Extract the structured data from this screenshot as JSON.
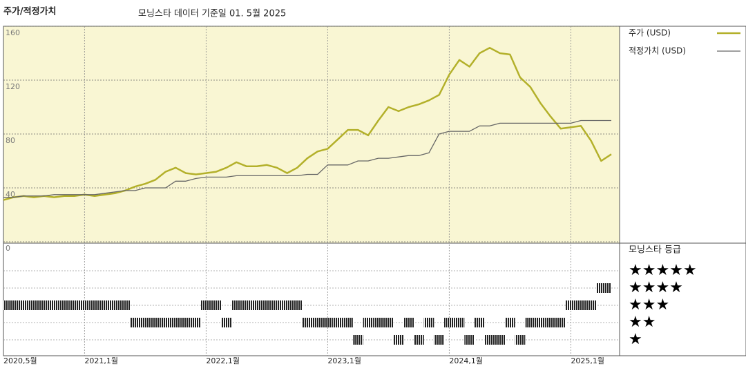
{
  "chart_data": {
    "type": "line",
    "title": "주가/적정가치",
    "subtitle": "모닝스타 데이터 기준일 01. 5월 2025",
    "x": [
      "2020-05",
      "2020-06",
      "2020-07",
      "2020-08",
      "2020-09",
      "2020-10",
      "2020-11",
      "2020-12",
      "2021-01",
      "2021-02",
      "2021-03",
      "2021-04",
      "2021-05",
      "2021-06",
      "2021-07",
      "2021-08",
      "2021-09",
      "2021-10",
      "2021-11",
      "2021-12",
      "2022-01",
      "2022-02",
      "2022-03",
      "2022-04",
      "2022-05",
      "2022-06",
      "2022-07",
      "2022-08",
      "2022-09",
      "2022-10",
      "2022-11",
      "2022-12",
      "2023-01",
      "2023-02",
      "2023-03",
      "2023-04",
      "2023-05",
      "2023-06",
      "2023-07",
      "2023-08",
      "2023-09",
      "2023-10",
      "2023-11",
      "2023-12",
      "2024-01",
      "2024-02",
      "2024-03",
      "2024-04",
      "2024-05",
      "2024-06",
      "2024-07",
      "2024-08",
      "2024-09",
      "2024-10",
      "2024-11",
      "2024-12",
      "2025-01",
      "2025-02",
      "2025-03",
      "2025-04",
      "2025-05"
    ],
    "series": [
      {
        "name": "주가 (USD)",
        "color": "#b3b02a",
        "width": 2.5,
        "values": [
          31,
          33,
          34,
          33,
          34,
          33,
          34,
          34,
          35,
          34,
          35,
          36,
          38,
          41,
          43,
          46,
          52,
          55,
          51,
          50,
          51,
          52,
          55,
          59,
          56,
          56,
          57,
          55,
          51,
          55,
          62,
          67,
          69,
          76,
          83,
          83,
          79,
          90,
          100,
          97,
          100,
          102,
          105,
          109,
          124,
          135,
          130,
          140,
          144,
          140,
          139,
          122,
          115,
          103,
          93,
          84,
          85,
          86,
          75,
          60,
          65
        ]
      },
      {
        "name": "적정가치 (USD)",
        "color": "#666666",
        "width": 1.3,
        "values": [
          33,
          33,
          34,
          34,
          34,
          35,
          35,
          35,
          35,
          35,
          36,
          37,
          38,
          38,
          40,
          40,
          40,
          45,
          45,
          47,
          48,
          48,
          48,
          49,
          49,
          49,
          49,
          49,
          49,
          49,
          50,
          50,
          57,
          57,
          57,
          60,
          60,
          62,
          62,
          63,
          64,
          64,
          66,
          80,
          82,
          82,
          82,
          86,
          86,
          88,
          88,
          88,
          88,
          88,
          88,
          88,
          88,
          90,
          90,
          90,
          90
        ]
      }
    ],
    "ylim": [
      0,
      160
    ],
    "yticks": [
      0,
      40,
      80,
      120,
      160
    ],
    "grid": true,
    "xticks": [
      {
        "value": "2020-05",
        "label": "2020,5월"
      },
      {
        "value": "2021-01",
        "label": "2021,1월"
      },
      {
        "value": "2022-01",
        "label": "2022,1월"
      },
      {
        "value": "2023-01",
        "label": "2023,1월"
      },
      {
        "value": "2024-01",
        "label": "2024,1월"
      },
      {
        "value": "2025-01",
        "label": "2025,1월"
      }
    ],
    "ratings": {
      "name": "모닝스타 등급",
      "color": "#222222",
      "values": [
        3,
        3,
        3,
        3,
        3,
        3,
        3,
        3,
        3,
        3,
        3,
        3,
        3,
        2,
        2,
        2,
        2,
        2,
        2,
        2,
        3,
        3,
        2,
        3,
        3,
        3,
        3,
        3,
        3,
        3,
        2,
        2,
        2,
        2,
        2,
        1,
        2,
        2,
        2,
        1,
        2,
        1,
        2,
        1,
        2,
        2,
        1,
        2,
        1,
        1,
        2,
        1,
        2,
        2,
        2,
        2,
        3,
        3,
        3,
        4,
        4
      ],
      "ticks": [
        {
          "value": 5,
          "label": "★★★★★"
        },
        {
          "value": 4,
          "label": "★★★★"
        },
        {
          "value": 3,
          "label": "★★★"
        },
        {
          "value": 2,
          "label": "★★"
        },
        {
          "value": 1,
          "label": "★"
        }
      ]
    }
  }
}
